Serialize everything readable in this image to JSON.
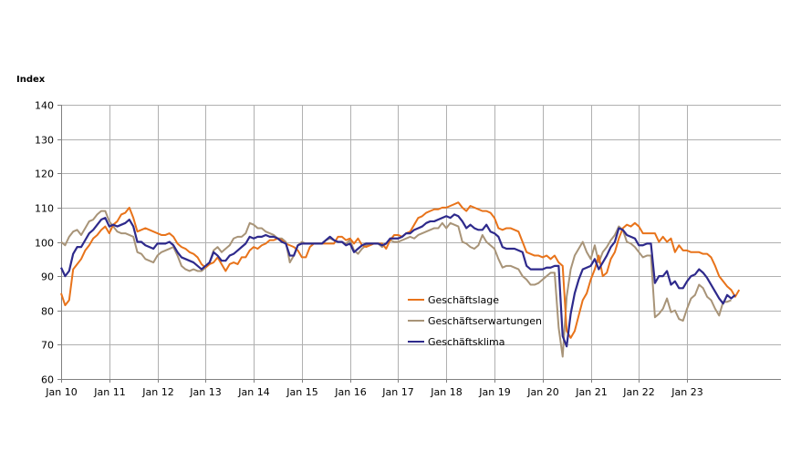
{
  "chart_data": {
    "type": "line",
    "ylabel": "Index",
    "ylim": [
      60,
      140
    ],
    "yticks": [
      60,
      70,
      80,
      90,
      100,
      110,
      120,
      130,
      140
    ],
    "x_start": "Jan 10",
    "x_ticks": [
      "Jan 10",
      "Jan 11",
      "Jan 12",
      "Jan 13",
      "Jan 14",
      "Jan 15",
      "Jan 16",
      "Jan 17",
      "Jan 18",
      "Jan 19",
      "Jan 20",
      "Jan 21",
      "Jan 22",
      "Jan 23"
    ],
    "grid": true,
    "legend_position": "center-bottom",
    "series": [
      {
        "name": "Geschäftslage",
        "color": "#e8731a",
        "values": [
          85,
          81.5,
          83,
          92,
          93.5,
          95,
          97.5,
          99,
          101,
          102,
          103.5,
          104.5,
          102.5,
          105,
          106,
          108,
          108.5,
          110,
          107,
          103,
          103.5,
          104,
          103.5,
          103,
          102.5,
          102,
          102,
          102.5,
          101.5,
          99.5,
          98.5,
          98,
          97,
          96.5,
          95.5,
          93.5,
          92.5,
          93.5,
          94,
          95.5,
          93.5,
          91.5,
          93.5,
          94,
          93.5,
          95.5,
          95.5,
          97.5,
          98.5,
          98,
          99,
          99.5,
          100.5,
          100.5,
          101,
          100.5,
          99.5,
          99,
          98.5,
          97.5,
          95.5,
          95.5,
          98.5,
          99.5,
          99.5,
          99.5,
          99.5,
          99.5,
          99.5,
          101.5,
          101.5,
          100.5,
          101,
          99.5,
          101,
          99,
          98.5,
          99,
          99.5,
          99.5,
          99.5,
          98,
          100.5,
          102,
          102,
          101.5,
          102.5,
          103,
          105,
          107,
          107.5,
          108.5,
          109,
          109.5,
          109.5,
          110,
          110,
          110.5,
          111,
          111.5,
          110,
          109,
          110.5,
          110,
          109.5,
          109,
          109,
          108.5,
          107,
          104,
          103.5,
          104,
          104,
          103.5,
          103,
          100,
          97,
          96.5,
          96,
          96,
          95.5,
          96,
          95,
          96,
          94,
          93,
          74,
          72,
          74,
          78.5,
          83,
          85,
          89,
          92,
          96,
          90,
          91,
          95,
          97,
          101,
          104,
          105,
          104.5,
          105.5,
          104.5,
          102.5,
          102.5,
          102.5,
          102.5,
          100,
          101.5,
          100,
          101,
          97,
          99,
          97.5,
          97.5,
          97,
          97,
          97,
          96.5,
          96.5,
          95.5,
          93,
          90,
          88.5,
          87,
          86,
          84,
          86
        ]
      },
      {
        "name": "Geschäftserwartungen",
        "color": "#a89478",
        "values": [
          100,
          99,
          101.5,
          103,
          103.5,
          102,
          104,
          106,
          106.5,
          108,
          109,
          109,
          106,
          104.5,
          103,
          102.5,
          102.5,
          102,
          101.5,
          97,
          96.5,
          95,
          94.5,
          94,
          96,
          97,
          97.5,
          98,
          98.5,
          96,
          93,
          92,
          91.5,
          92,
          91.5,
          91.5,
          92.5,
          94,
          97.5,
          98.5,
          97,
          98,
          99,
          101,
          101.5,
          101.5,
          102.5,
          105.5,
          105,
          104,
          104,
          103,
          102.5,
          102,
          101,
          101,
          100,
          94,
          96,
          99,
          100,
          99.5,
          99.5,
          99.5,
          99.5,
          99.5,
          100.5,
          101,
          100.5,
          100,
          100,
          99.5,
          100.5,
          97.5,
          96.5,
          98,
          99,
          99.5,
          99.5,
          99.5,
          98.5,
          99.5,
          100.5,
          100,
          100,
          100.5,
          101,
          101.5,
          101,
          102,
          102.5,
          103,
          103.5,
          104,
          104,
          105.5,
          104,
          105.5,
          105,
          104.5,
          100,
          99.5,
          98.5,
          98,
          99,
          102,
          100,
          99,
          98,
          95,
          92.5,
          93,
          93,
          92.5,
          92,
          90,
          89,
          87.5,
          87.5,
          88,
          89,
          90,
          91,
          91,
          75,
          66.5,
          84,
          92,
          96,
          98,
          100,
          97,
          95,
          99,
          94,
          97,
          98.5,
          100.5,
          102,
          104.5,
          103.5,
          100,
          99.5,
          98.5,
          97,
          95.5,
          96,
          96,
          78,
          79,
          80.5,
          83.5,
          79.5,
          80,
          77.5,
          77,
          80.5,
          83.5,
          84.5,
          87.5,
          86.5,
          84,
          83,
          80.5,
          78.5,
          82.5,
          82.5,
          83
        ]
      },
      {
        "name": "Geschäftsklima",
        "color": "#2e2a8c",
        "values": [
          92.5,
          90,
          91.5,
          96.5,
          98.5,
          98.5,
          100.5,
          102.5,
          103.5,
          105,
          106.5,
          107,
          104.5,
          105,
          104.5,
          105,
          105.5,
          106.5,
          104.5,
          100,
          100,
          99,
          98.5,
          98,
          99.5,
          99.5,
          99.5,
          100,
          99,
          97,
          95.5,
          95,
          94.5,
          94,
          93,
          92,
          93,
          94,
          97,
          96,
          94.5,
          94.5,
          96,
          96.5,
          97.5,
          98.5,
          99.5,
          101.5,
          101,
          101.5,
          101.5,
          102,
          101.5,
          101.5,
          101,
          100,
          99.5,
          96,
          96,
          99,
          99.5,
          99.5,
          99.5,
          99.5,
          99.5,
          99.5,
          100.5,
          101.5,
          100.5,
          100,
          100,
          99,
          99.5,
          97,
          98,
          99,
          99.5,
          99.5,
          99.5,
          99.5,
          99,
          99.5,
          101,
          101,
          101,
          101.5,
          102.5,
          102.5,
          103.5,
          104,
          104.5,
          105.5,
          106,
          106,
          106.5,
          107,
          107.5,
          107,
          108,
          107.5,
          106,
          104,
          105,
          104,
          103.5,
          103.5,
          105,
          103,
          102.5,
          101.5,
          98.5,
          98,
          98,
          98,
          97.5,
          97,
          93,
          92,
          92,
          92,
          92,
          92.5,
          92.5,
          93,
          93,
          72.5,
          69.5,
          79,
          85,
          89,
          92,
          92.5,
          93,
          95,
          92,
          94,
          96,
          98.5,
          100,
          104,
          103.5,
          102,
          101.5,
          101,
          99,
          99,
          99.5,
          99.5,
          88,
          90,
          90,
          91.5,
          87.5,
          88.5,
          86.5,
          86.5,
          88.5,
          90,
          90.5,
          92,
          91,
          89.5,
          87.5,
          85.5,
          83.5,
          82,
          84.5,
          83.5,
          84.5
        ]
      }
    ]
  }
}
